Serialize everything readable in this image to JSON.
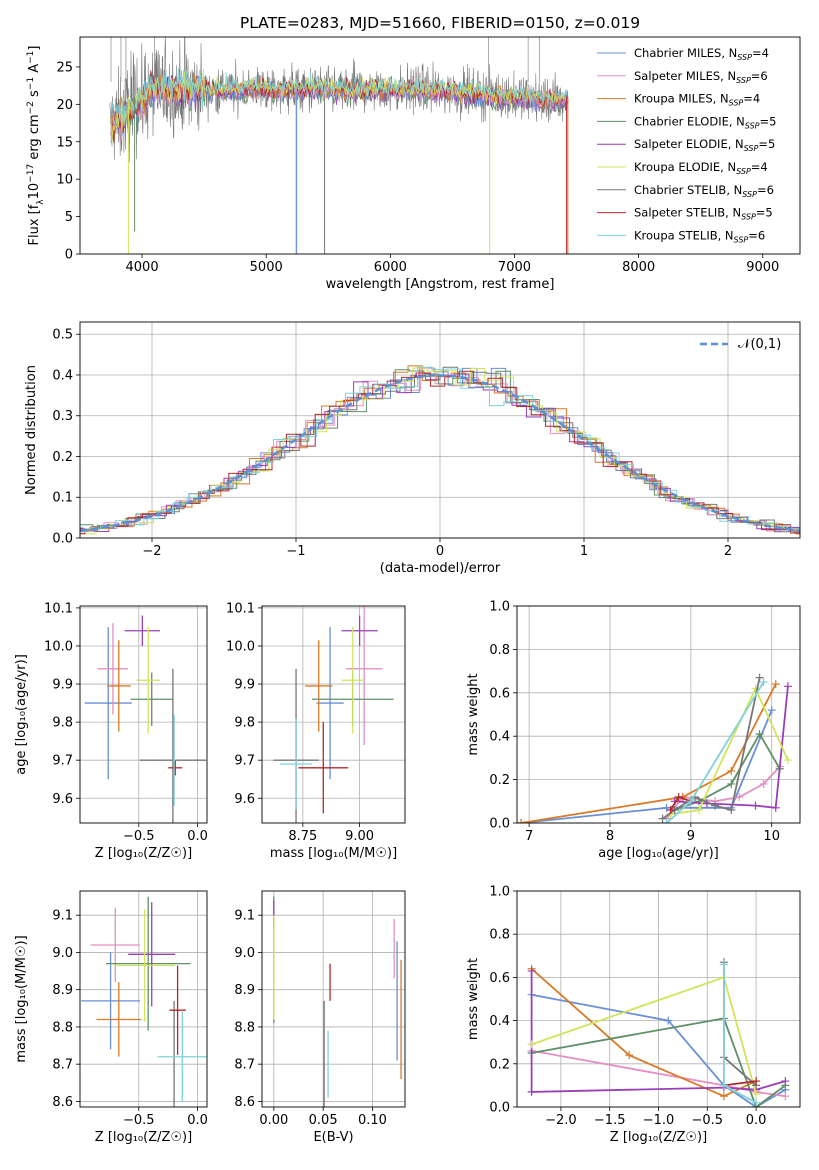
{
  "palette": {
    "Chabrier MILES": "#6a8fd8",
    "Salpeter MILES": "#e68fc4",
    "Kroupa MILES": "#d97a26",
    "Chabrier ELODIE": "#5f8f68",
    "Salpeter ELODIE": "#9a3fb8",
    "Kroupa ELODIE": "#d3e35a",
    "Chabrier STELIB": "#777777",
    "Salpeter STELIB": "#b0282e",
    "Kroupa STELIB": "#7fd3d8"
  },
  "chart_data": [
    {
      "id": "spectrum",
      "type": "line",
      "title": "PLATE=0283, MJD=51660, FIBERID=0150, z=0.019",
      "xlabel": "wavelength [Angstrom, rest frame]",
      "ylabel": "Flux [f_λ10^{-17} erg cm^{-2} s^{-1} A^{-1}]",
      "ylabel_parts": [
        "Flux [f",
        "λ",
        "10",
        "−17",
        " erg cm",
        "−2",
        " s",
        "−1",
        " A",
        "−1",
        "]"
      ],
      "xlim": [
        3500,
        9300
      ],
      "ylim": [
        0,
        29
      ],
      "xticks": [
        4000,
        5000,
        6000,
        7000,
        8000,
        9000
      ],
      "yticks": [
        0,
        5,
        10,
        15,
        20,
        25
      ],
      "data_range": [
        3740,
        7430
      ],
      "legend": {
        "placement": "top-right",
        "entries": [
          {
            "pre": "Chabrier MILES, N",
            "sub": "SSP",
            "post": "=4",
            "color": "#6a8fd8"
          },
          {
            "pre": "Salpeter MILES, N",
            "sub": "SSP",
            "post": "=6",
            "color": "#e68fc4"
          },
          {
            "pre": "Kroupa MILES, N",
            "sub": "SSP",
            "post": "=4",
            "color": "#d97a26"
          },
          {
            "pre": "Chabrier ELODIE, N",
            "sub": "SSP",
            "post": "=5",
            "color": "#5f8f68"
          },
          {
            "pre": "Salpeter ELODIE, N",
            "sub": "SSP",
            "post": "=5",
            "color": "#9a3fb8"
          },
          {
            "pre": "Kroupa ELODIE, N",
            "sub": "SSP",
            "post": "=4",
            "color": "#d3e35a"
          },
          {
            "pre": "Chabrier STELIB, N",
            "sub": "SSP",
            "post": "=6",
            "color": "#777777"
          },
          {
            "pre": "Salpeter STELIB, N",
            "sub": "SSP",
            "post": "=5",
            "color": "#b0282e"
          },
          {
            "pre": "Kroupa STELIB, N",
            "sub": "SSP",
            "post": "=6",
            "color": "#7fd3d8"
          }
        ]
      },
      "grid": false
    },
    {
      "id": "residuals",
      "type": "histogram",
      "xlabel": "(data-model)/error",
      "ylabel": "Normed distribution",
      "xlim": [
        -2.5,
        2.5
      ],
      "ylim": [
        0,
        0.53
      ],
      "xticks": [
        -2,
        -1,
        0,
        1,
        2
      ],
      "xtick_labels": [
        "−2",
        "−1",
        "0",
        "1",
        "2"
      ],
      "yticks": [
        0.0,
        0.1,
        0.2,
        0.3,
        0.4,
        0.5
      ],
      "ytick_labels": [
        "0.0",
        "0.1",
        "0.2",
        "0.3",
        "0.4",
        "0.5"
      ],
      "bin_width": 0.1,
      "legend": {
        "placement": "top-right",
        "label": "𝒩(0,1)",
        "color": "#5b8fd6"
      },
      "grid": true
    },
    {
      "id": "age-vs-Z",
      "type": "errorbar",
      "xlabel": "Z [log₁₀(Z/Z☉)]",
      "ylabel": "age  [log₁₀(age/yr)]",
      "xlim": [
        -1.0,
        0.08
      ],
      "ylim": [
        9.535,
        10.105
      ],
      "xticks": [
        -0.5,
        0.0
      ],
      "xtick_labels": [
        "−0.5",
        "0.0"
      ],
      "yticks": [
        9.6,
        9.7,
        9.8,
        9.9,
        10.0,
        10.1
      ],
      "ytick_labels": [
        "9.6",
        "9.7",
        "9.8",
        "9.9",
        "10.0",
        "10.1"
      ],
      "grid": true,
      "points": [
        {
          "series": "Chabrier MILES",
          "x": -0.76,
          "xerr": 0.2,
          "y": 9.85,
          "yerr": 0.2
        },
        {
          "series": "Salpeter MILES",
          "x": -0.72,
          "xerr": 0.13,
          "y": 9.94,
          "yerr": 0.12
        },
        {
          "series": "Kroupa MILES",
          "x": -0.67,
          "xerr": 0.1,
          "y": 9.895,
          "yerr": 0.12
        },
        {
          "series": "Chabrier ELODIE",
          "x": -0.39,
          "xerr": 0.18,
          "y": 9.86,
          "yerr": 0.07
        },
        {
          "series": "Salpeter ELODIE",
          "x": -0.47,
          "xerr": 0.15,
          "y": 10.04,
          "yerr": 0.04
        },
        {
          "series": "Kroupa ELODIE",
          "x": -0.42,
          "xerr": 0.1,
          "y": 9.91,
          "yerr": 0.14
        },
        {
          "series": "Chabrier STELIB",
          "x": -0.21,
          "xerr": 0.28,
          "y": 9.7,
          "yerr": 0.24
        },
        {
          "series": "Salpeter STELIB",
          "x": -0.19,
          "xerr": 0.06,
          "y": 9.68,
          "yerr": 0.02
        },
        {
          "series": "Kroupa STELIB",
          "x": -0.2,
          "xerr": 0.01,
          "y": 9.7,
          "yerr": 0.12
        }
      ]
    },
    {
      "id": "age-vs-mass",
      "type": "errorbar",
      "xlabel": "mass [log₁₀(M/M☉)]",
      "ylabel": "",
      "xlim": [
        8.57,
        9.2
      ],
      "ylim": [
        9.535,
        10.105
      ],
      "xticks": [
        8.75,
        9.0
      ],
      "xtick_labels": [
        "8.75",
        "9.00"
      ],
      "yticks": [
        9.6,
        9.7,
        9.8,
        9.9,
        10.0,
        10.1
      ],
      "ytick_labels": [
        "9.6",
        "9.7",
        "9.8",
        "9.9",
        "10.0",
        "10.1"
      ],
      "grid": true,
      "points": [
        {
          "series": "Chabrier MILES",
          "x": 8.87,
          "xerr": 0.06,
          "y": 9.85,
          "yerr": 0.2
        },
        {
          "series": "Salpeter MILES",
          "x": 9.02,
          "xerr": 0.08,
          "y": 9.94,
          "yerr": 0.2
        },
        {
          "series": "Kroupa MILES",
          "x": 8.82,
          "xerr": 0.06,
          "y": 9.895,
          "yerr": 0.12
        },
        {
          "series": "Chabrier ELODIE",
          "x": 8.97,
          "xerr": 0.18,
          "y": 9.86,
          "yerr": 0.07
        },
        {
          "series": "Salpeter ELODIE",
          "x": 9.0,
          "xerr": 0.08,
          "y": 10.04,
          "yerr": 0.04
        },
        {
          "series": "Kroupa ELODIE",
          "x": 8.97,
          "xerr": 0.05,
          "y": 9.91,
          "yerr": 0.14
        },
        {
          "series": "Chabrier STELIB",
          "x": 8.72,
          "xerr": 0.1,
          "y": 9.7,
          "yerr": 0.24
        },
        {
          "series": "Salpeter STELIB",
          "x": 8.84,
          "xerr": 0.11,
          "y": 9.68,
          "yerr": 0.12
        },
        {
          "series": "Kroupa STELIB",
          "x": 8.72,
          "xerr": 0.07,
          "y": 9.69,
          "yerr": 0.12
        }
      ]
    },
    {
      "id": "mw-vs-age",
      "type": "line",
      "xlabel": "age  [log₁₀(age/yr)]",
      "ylabel": "mass weight",
      "xlim": [
        6.85,
        10.35
      ],
      "ylim": [
        0.0,
        1.0
      ],
      "xticks": [
        7,
        8,
        9,
        10
      ],
      "xtick_labels": [
        "7",
        "8",
        "9",
        "10"
      ],
      "yticks": [
        0.0,
        0.2,
        0.4,
        0.6,
        0.8,
        1.0
      ],
      "ytick_labels": [
        "0.0",
        "0.2",
        "0.4",
        "0.6",
        "0.8",
        "1.0"
      ],
      "grid": true,
      "marker": "+",
      "series": [
        {
          "name": "Chabrier MILES",
          "x": [
            6.9,
            8.7,
            9.5,
            10.0
          ],
          "y": [
            0.0,
            0.07,
            0.07,
            0.52
          ]
        },
        {
          "name": "Salpeter MILES",
          "x": [
            8.7,
            8.9,
            9.3,
            9.6,
            9.9,
            10.1
          ],
          "y": [
            0.02,
            0.12,
            0.1,
            0.12,
            0.18,
            0.26
          ]
        },
        {
          "name": "Kroupa MILES",
          "x": [
            6.9,
            8.9,
            9.5,
            10.05
          ],
          "y": [
            0.0,
            0.12,
            0.24,
            0.64
          ]
        },
        {
          "name": "Chabrier ELODIE",
          "x": [
            8.8,
            9.1,
            9.5,
            9.85,
            10.1
          ],
          "y": [
            0.06,
            0.1,
            0.18,
            0.41,
            0.25
          ]
        },
        {
          "name": "Salpeter ELODIE",
          "x": [
            8.8,
            9.2,
            9.8,
            10.05,
            10.2
          ],
          "y": [
            0.1,
            0.09,
            0.08,
            0.07,
            0.63
          ]
        },
        {
          "name": "Kroupa ELODIE",
          "x": [
            8.75,
            9.1,
            9.8,
            10.2
          ],
          "y": [
            0.04,
            0.06,
            0.62,
            0.29
          ]
        },
        {
          "name": "Chabrier STELIB",
          "x": [
            8.65,
            8.8,
            9.05,
            9.3,
            9.5,
            9.85
          ],
          "y": [
            0.02,
            0.06,
            0.12,
            0.08,
            0.06,
            0.67
          ]
        },
        {
          "name": "Salpeter STELIB",
          "x": [
            8.75,
            8.85,
            9.0
          ],
          "y": [
            0.06,
            0.12,
            0.1
          ]
        },
        {
          "name": "Kroupa STELIB",
          "x": [
            8.7,
            9.0,
            9.9
          ],
          "y": [
            0.0,
            0.1,
            0.65
          ]
        }
      ]
    },
    {
      "id": "mass-vs-Z",
      "type": "errorbar",
      "xlabel": "Z [log₁₀(Z/Z☉)]",
      "ylabel": "mass [log₁₀(M/M☉)]",
      "xlim": [
        -1.0,
        0.08
      ],
      "ylim": [
        8.585,
        9.165
      ],
      "xticks": [
        -0.5,
        0.0
      ],
      "xtick_labels": [
        "−0.5",
        "0.0"
      ],
      "yticks": [
        8.6,
        8.7,
        8.8,
        8.9,
        9.0,
        9.1
      ],
      "ytick_labels": [
        "8.6",
        "8.7",
        "8.8",
        "8.9",
        "9.0",
        "9.1"
      ],
      "grid": true,
      "points": [
        {
          "series": "Chabrier MILES",
          "x": -0.74,
          "xerr": 0.25,
          "y": 8.87,
          "yerr": 0.13
        },
        {
          "series": "Salpeter MILES",
          "x": -0.7,
          "xerr": 0.21,
          "y": 9.02,
          "yerr": 0.1
        },
        {
          "series": "Kroupa MILES",
          "x": -0.67,
          "xerr": 0.19,
          "y": 8.82,
          "yerr": 0.1
        },
        {
          "series": "Chabrier ELODIE",
          "x": -0.42,
          "xerr": 0.36,
          "y": 8.97,
          "yerr": 0.18
        },
        {
          "series": "Salpeter ELODIE",
          "x": -0.39,
          "xerr": 0.2,
          "y": 8.995,
          "yerr": 0.14
        },
        {
          "series": "Kroupa ELODIE",
          "x": -0.45,
          "xerr": 0.26,
          "y": 8.965,
          "yerr": 0.15
        },
        {
          "series": "Chabrier STELIB",
          "x": -0.2,
          "xerr": 0.0,
          "y": 8.72,
          "yerr": 0.15
        },
        {
          "series": "Salpeter STELIB",
          "x": -0.17,
          "xerr": 0.07,
          "y": 8.845,
          "yerr": 0.12
        },
        {
          "series": "Kroupa STELIB",
          "x": -0.13,
          "xerr": 0.21,
          "y": 8.72,
          "yerr": 0.12
        }
      ]
    },
    {
      "id": "mass-vs-EBV",
      "type": "errorbar",
      "xlabel": "E(B-V)",
      "ylabel": "",
      "xlim": [
        -0.012,
        0.133
      ],
      "ylim": [
        8.585,
        9.165
      ],
      "xticks": [
        0.0,
        0.05,
        0.1
      ],
      "xtick_labels": [
        "0.00",
        "0.05",
        "0.10"
      ],
      "yticks": [
        8.6,
        8.7,
        8.8,
        8.9,
        9.0,
        9.1
      ],
      "ytick_labels": [
        "8.6",
        "8.7",
        "8.8",
        "8.9",
        "9.0",
        "9.1"
      ],
      "grid": true,
      "points": [
        {
          "series": "Chabrier MILES",
          "x": 0.125,
          "xerr": 0.0,
          "y": 8.87,
          "yerr": 0.16
        },
        {
          "series": "Salpeter MILES",
          "x": 0.122,
          "xerr": 0.0,
          "y": 9.01,
          "yerr": 0.08
        },
        {
          "series": "Kroupa MILES",
          "x": 0.129,
          "xerr": 0.0,
          "y": 8.82,
          "yerr": 0.16
        },
        {
          "series": "Chabrier ELODIE",
          "x": 0.0,
          "xerr": 0.0,
          "y": 8.98,
          "yerr": 0.17
        },
        {
          "series": "Salpeter ELODIE",
          "x": 0.0,
          "xerr": 0.0,
          "y": 9.1,
          "yerr": 0.04
        },
        {
          "series": "Kroupa ELODIE",
          "x": 0.0,
          "xerr": 0.0,
          "y": 8.96,
          "yerr": 0.14
        },
        {
          "series": "Chabrier STELIB",
          "x": 0.051,
          "xerr": 0.0,
          "y": 8.72,
          "yerr": 0.15
        },
        {
          "series": "Salpeter STELIB",
          "x": 0.057,
          "xerr": 0.0,
          "y": 8.92,
          "yerr": 0.05
        },
        {
          "series": "Kroupa STELIB",
          "x": 0.055,
          "xerr": 0.0,
          "y": 8.7,
          "yerr": 0.09
        }
      ]
    },
    {
      "id": "mw-vs-Z",
      "type": "line",
      "xlabel": "Z [log₁₀(Z/Z☉)]",
      "ylabel": "mass weight",
      "xlim": [
        -2.45,
        0.45
      ],
      "ylim": [
        0.0,
        1.0
      ],
      "xticks": [
        -2.0,
        -1.5,
        -1.0,
        -0.5,
        0.0
      ],
      "xtick_labels": [
        "−2.0",
        "−1.5",
        "−1.0",
        "−0.5",
        "0.0"
      ],
      "yticks": [
        0.0,
        0.2,
        0.4,
        0.6,
        0.8,
        1.0
      ],
      "ytick_labels": [
        "0.0",
        "0.2",
        "0.4",
        "0.6",
        "0.8",
        "1.0"
      ],
      "grid": true,
      "marker": "+",
      "series": [
        {
          "name": "Chabrier MILES",
          "x": [
            -2.3,
            -0.9,
            -0.33,
            0.0,
            0.3
          ],
          "y": [
            0.52,
            0.4,
            0.1,
            0.0,
            0.08
          ]
        },
        {
          "name": "Salpeter MILES",
          "x": [
            -2.3,
            -0.33,
            0.0,
            0.3
          ],
          "y": [
            0.26,
            0.1,
            0.07,
            0.05
          ]
        },
        {
          "name": "Kroupa MILES",
          "x": [
            -2.3,
            -1.3,
            -0.33,
            0.0
          ],
          "y": [
            0.64,
            0.24,
            0.05,
            0.12
          ]
        },
        {
          "name": "Chabrier ELODIE",
          "x": [
            -2.3,
            -0.33,
            0.0,
            0.3
          ],
          "y": [
            0.25,
            0.41,
            0.0,
            0.1
          ]
        },
        {
          "name": "Salpeter ELODIE",
          "x": [
            -2.3,
            -2.3,
            -0.33,
            0.0,
            0.3
          ],
          "y": [
            0.63,
            0.07,
            0.09,
            0.08,
            0.12
          ]
        },
        {
          "name": "Kroupa ELODIE",
          "x": [
            -2.3,
            -0.33,
            0.0
          ],
          "y": [
            0.29,
            0.6,
            0.06
          ]
        },
        {
          "name": "Chabrier STELIB",
          "x": [
            -0.33,
            -0.33,
            0.0
          ],
          "y": [
            0.67,
            0.23,
            0.1
          ]
        },
        {
          "name": "Salpeter STELIB",
          "x": [
            -0.33,
            0.0
          ],
          "y": [
            0.1,
            0.12
          ]
        },
        {
          "name": "Kroupa STELIB",
          "x": [
            -0.33,
            -0.33,
            0.0
          ],
          "y": [
            0.66,
            0.1,
            0.02
          ]
        }
      ]
    }
  ]
}
